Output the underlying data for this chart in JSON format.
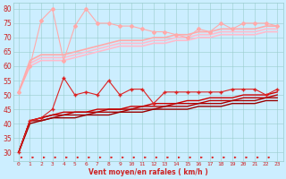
{
  "xlabel": "Vent moyen/en rafales ( km/h )",
  "bg_color": "#cceeff",
  "grid_color": "#99cccc",
  "x": [
    0,
    1,
    2,
    3,
    4,
    5,
    6,
    7,
    8,
    9,
    10,
    11,
    12,
    13,
    14,
    15,
    16,
    17,
    18,
    19,
    20,
    21,
    22,
    23
  ],
  "ylim": [
    27,
    82
  ],
  "yticks": [
    30,
    35,
    40,
    45,
    50,
    55,
    60,
    65,
    70,
    75,
    80
  ],
  "series": [
    {
      "y": [
        51,
        60,
        62,
        62,
        62,
        63,
        64,
        65,
        66,
        67,
        67,
        67,
        68,
        68,
        69,
        69,
        70,
        70,
        71,
        71,
        71,
        71,
        72,
        72
      ],
      "color": "#ffbbcc",
      "marker": null,
      "lw": 1.2,
      "zorder": 2
    },
    {
      "y": [
        51,
        61,
        63,
        63,
        63,
        64,
        65,
        66,
        67,
        68,
        68,
        68,
        69,
        69,
        70,
        70,
        71,
        71,
        72,
        72,
        72,
        72,
        73,
        73
      ],
      "color": "#ffbbcc",
      "marker": null,
      "lw": 1.2,
      "zorder": 2
    },
    {
      "y": [
        51,
        62,
        64,
        64,
        64,
        65,
        66,
        67,
        68,
        69,
        69,
        69,
        70,
        70,
        71,
        71,
        72,
        72,
        73,
        73,
        73,
        73,
        74,
        74
      ],
      "color": "#ffaaaa",
      "marker": null,
      "lw": 1.2,
      "zorder": 2
    },
    {
      "y": [
        51,
        60,
        76,
        80,
        62,
        74,
        80,
        75,
        75,
        74,
        74,
        73,
        72,
        72,
        71,
        70,
        73,
        72,
        75,
        73,
        75,
        75,
        75,
        74
      ],
      "color": "#ffaaaa",
      "marker": "D",
      "markersize": 2,
      "lw": 0.8,
      "zorder": 3
    },
    {
      "y": [
        30,
        41,
        42,
        45,
        56,
        50,
        51,
        50,
        55,
        50,
        52,
        52,
        47,
        51,
        51,
        51,
        51,
        51,
        51,
        52,
        52,
        52,
        50,
        52
      ],
      "color": "#dd2222",
      "marker": "+",
      "markersize": 3,
      "lw": 0.8,
      "zorder": 4
    },
    {
      "y": [
        30,
        41,
        42,
        43,
        44,
        44,
        44,
        45,
        45,
        45,
        46,
        46,
        47,
        47,
        47,
        48,
        48,
        49,
        49,
        49,
        50,
        50,
        50,
        51
      ],
      "color": "#cc0000",
      "marker": null,
      "lw": 1.0,
      "zorder": 3
    },
    {
      "y": [
        30,
        41,
        42,
        43,
        43,
        44,
        44,
        44,
        45,
        45,
        45,
        46,
        46,
        46,
        47,
        47,
        47,
        48,
        48,
        48,
        49,
        49,
        49,
        50
      ],
      "color": "#bb0000",
      "marker": null,
      "lw": 1.0,
      "zorder": 3
    },
    {
      "y": [
        30,
        41,
        41,
        42,
        43,
        43,
        43,
        44,
        44,
        44,
        45,
        45,
        45,
        46,
        46,
        46,
        47,
        47,
        47,
        48,
        48,
        48,
        49,
        49
      ],
      "color": "#aa0000",
      "marker": null,
      "lw": 1.0,
      "zorder": 3
    },
    {
      "y": [
        30,
        40,
        41,
        42,
        42,
        42,
        43,
        43,
        43,
        44,
        44,
        44,
        45,
        45,
        45,
        45,
        46,
        46,
        46,
        47,
        47,
        47,
        48,
        48
      ],
      "color": "#990000",
      "marker": null,
      "lw": 1.0,
      "zorder": 3
    }
  ],
  "arrow_color": "#dd2222",
  "xtick_labels": [
    "0",
    "1",
    "2",
    "3",
    "4",
    "5",
    "6",
    "7",
    "8",
    "9",
    "10",
    "11",
    "12",
    "13",
    "14",
    "15",
    "16",
    "17",
    "18",
    "19",
    "20",
    "21",
    "22",
    "23"
  ]
}
